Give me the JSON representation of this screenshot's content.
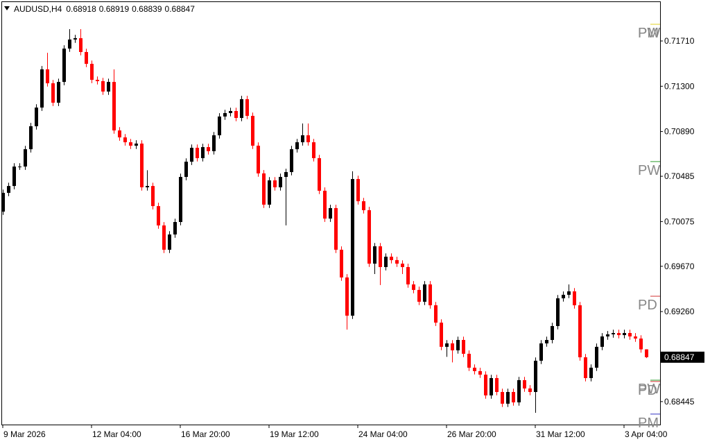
{
  "chart_data": {
    "type": "candlestick",
    "symbol": "AUDUSD,H4",
    "bull_color": "#000000",
    "bear_color": "#ff0000",
    "categories": [
      "9 Mar 2026",
      null,
      null,
      null,
      null,
      null,
      null,
      null,
      null,
      null,
      null,
      null,
      null,
      null,
      null,
      null,
      "12 Mar 04:00",
      null,
      null,
      null,
      null,
      null,
      null,
      null,
      null,
      null,
      null,
      null,
      null,
      null,
      null,
      null,
      "16 Mar 20:00",
      null,
      null,
      null,
      null,
      null,
      null,
      null,
      null,
      null,
      null,
      null,
      null,
      null,
      null,
      null,
      "19 Mar 12:00",
      null,
      null,
      null,
      null,
      null,
      null,
      null,
      null,
      null,
      null,
      null,
      null,
      null,
      null,
      null,
      "24 Mar 04:00",
      null,
      null,
      null,
      null,
      null,
      null,
      null,
      null,
      null,
      null,
      null,
      null,
      null,
      null,
      null,
      "26 Mar 20:00",
      null,
      null,
      null,
      null,
      null,
      null,
      null,
      null,
      null,
      null,
      null,
      null,
      null,
      null,
      null,
      "31 Mar 12:00",
      null,
      null,
      null,
      null,
      null,
      null,
      null,
      null,
      null,
      null,
      null,
      null,
      null,
      null,
      null,
      "3 Apr 04:00",
      null,
      null,
      null,
      null
    ],
    "open": [
      0.70165,
      0.70335,
      0.70397,
      0.70573,
      0.70573,
      0.7073,
      0.70938,
      0.71107,
      0.71453,
      0.71327,
      0.71151,
      0.71339,
      0.71641,
      0.71723,
      0.71735,
      0.7161,
      0.71503,
      0.71358,
      0.71346,
      0.71252,
      0.71339,
      0.709,
      0.70837,
      0.70793,
      0.70762,
      0.70781,
      0.70385,
      0.70397,
      0.70215,
      0.7004,
      0.6982,
      0.69958,
      0.70071,
      0.70479,
      0.70617,
      0.70743,
      0.70649,
      0.70749,
      0.70712,
      0.70856,
      0.71026,
      0.71057,
      0.71076,
      0.71013,
      0.71183,
      0.71032,
      0.70762,
      0.70511,
      0.70228,
      0.70448,
      0.70385,
      0.70479,
      0.70523,
      0.7073,
      0.70793,
      0.70856,
      0.70793,
      0.70649,
      0.70354,
      0.70102,
      0.70197,
      0.6982,
      0.69569,
      0.69223,
      0.7046,
      0.70259,
      0.70178,
      0.69694,
      0.69851,
      0.69663,
      0.69757,
      0.69726,
      0.69694,
      0.69663,
      0.69506,
      0.69456,
      0.69349,
      0.69506,
      0.69317,
      0.6916,
      0.68941,
      0.68972,
      0.68909,
      0.69003,
      0.68878,
      0.68752,
      0.68721,
      0.68689,
      0.68501,
      0.68658,
      0.68532,
      0.68426,
      0.68532,
      0.68438,
      0.68639,
      0.68564,
      0.68532,
      0.68815,
      0.68972,
      0.69003,
      0.69129,
      0.6938,
      0.69412,
      0.69443,
      0.69317,
      0.68846,
      0.68658,
      0.68752,
      0.68941,
      0.69035,
      0.69054,
      0.69066,
      0.69047,
      0.69066,
      0.69035,
      0.69016,
      0.68918
    ],
    "high": [
      0.70365,
      0.70427,
      0.70603,
      0.70603,
      0.7076,
      0.70968,
      0.71137,
      0.71483,
      0.71603,
      0.71357,
      0.71369,
      0.71671,
      0.71817,
      0.71765,
      0.71817,
      0.7164,
      0.71533,
      0.71388,
      0.71376,
      0.71369,
      0.71453,
      0.7093,
      0.70867,
      0.70823,
      0.70811,
      0.70811,
      0.7054,
      0.70427,
      0.70245,
      0.7007,
      0.69988,
      0.70101,
      0.70509,
      0.70647,
      0.70773,
      0.70773,
      0.70779,
      0.70779,
      0.70886,
      0.71056,
      0.71087,
      0.71106,
      0.71106,
      0.71213,
      0.71213,
      0.71062,
      0.70792,
      0.70541,
      0.70478,
      0.70478,
      0.70509,
      0.70553,
      0.7076,
      0.70823,
      0.70963,
      0.70963,
      0.70823,
      0.70679,
      0.70384,
      0.70227,
      0.70227,
      0.6985,
      0.69599,
      0.7053,
      0.7049,
      0.70289,
      0.70208,
      0.69881,
      0.69881,
      0.69787,
      0.69787,
      0.69756,
      0.69724,
      0.69693,
      0.69536,
      0.69486,
      0.69536,
      0.69536,
      0.69347,
      0.6919,
      0.69002,
      0.69002,
      0.69033,
      0.69033,
      0.68908,
      0.68782,
      0.68751,
      0.68719,
      0.68688,
      0.68688,
      0.68562,
      0.68562,
      0.68562,
      0.68669,
      0.68669,
      0.68594,
      0.68845,
      0.69002,
      0.69033,
      0.69159,
      0.6941,
      0.69442,
      0.69506,
      0.69473,
      0.69347,
      0.68876,
      0.68782,
      0.68971,
      0.69065,
      0.69084,
      0.69096,
      0.69096,
      0.69096,
      0.69096,
      0.69065,
      0.69046,
      0.68919
    ],
    "low": [
      0.70135,
      0.70305,
      0.70367,
      0.70543,
      0.70543,
      0.707,
      0.70908,
      0.71077,
      0.71297,
      0.71121,
      0.71121,
      0.71309,
      0.71611,
      0.71693,
      0.7158,
      0.71473,
      0.71328,
      0.71316,
      0.71222,
      0.71222,
      0.7087,
      0.70807,
      0.70763,
      0.70732,
      0.70732,
      0.70355,
      0.70355,
      0.70185,
      0.7001,
      0.6979,
      0.6979,
      0.69928,
      0.70041,
      0.70449,
      0.70587,
      0.70619,
      0.70619,
      0.70682,
      0.70682,
      0.70826,
      0.70996,
      0.71027,
      0.70983,
      0.70983,
      0.71002,
      0.70732,
      0.70481,
      0.70198,
      0.70198,
      0.70355,
      0.70355,
      0.7004,
      0.70493,
      0.707,
      0.70763,
      0.70763,
      0.70619,
      0.70324,
      0.70072,
      0.70072,
      0.6979,
      0.69539,
      0.69097,
      0.69193,
      0.70229,
      0.70148,
      0.69664,
      0.696,
      0.695,
      0.69633,
      0.69696,
      0.69664,
      0.696,
      0.69476,
      0.69426,
      0.69319,
      0.69319,
      0.69287,
      0.6913,
      0.68911,
      0.6885,
      0.688,
      0.68879,
      0.68848,
      0.68722,
      0.68691,
      0.68659,
      0.68471,
      0.68471,
      0.68502,
      0.68396,
      0.68396,
      0.68408,
      0.68408,
      0.68534,
      0.68502,
      0.68344,
      0.68785,
      0.68942,
      0.68973,
      0.69099,
      0.6935,
      0.69382,
      0.69287,
      0.68816,
      0.68628,
      0.68628,
      0.68722,
      0.68911,
      0.69005,
      0.69024,
      0.69017,
      0.69017,
      0.69005,
      0.68986,
      0.68888,
      0.68839
    ],
    "close": [
      0.70335,
      0.70397,
      0.70573,
      0.70573,
      0.7073,
      0.70938,
      0.71107,
      0.71453,
      0.71327,
      0.71151,
      0.71339,
      0.71641,
      0.71723,
      0.71735,
      0.7161,
      0.71503,
      0.71358,
      0.71346,
      0.71252,
      0.71339,
      0.709,
      0.70837,
      0.70793,
      0.70762,
      0.70781,
      0.70385,
      0.70397,
      0.70215,
      0.7004,
      0.6982,
      0.69958,
      0.70071,
      0.70479,
      0.70617,
      0.70743,
      0.70649,
      0.70749,
      0.70712,
      0.70856,
      0.71026,
      0.71057,
      0.71076,
      0.71013,
      0.71183,
      0.71032,
      0.70762,
      0.70511,
      0.70228,
      0.70448,
      0.70385,
      0.70479,
      0.70523,
      0.7073,
      0.70793,
      0.70856,
      0.70793,
      0.70649,
      0.70354,
      0.70102,
      0.70197,
      0.6982,
      0.69569,
      0.69223,
      0.7046,
      0.70259,
      0.70178,
      0.69694,
      0.69851,
      0.69663,
      0.69757,
      0.69726,
      0.69694,
      0.69663,
      0.69506,
      0.69456,
      0.69349,
      0.69506,
      0.69317,
      0.6916,
      0.68941,
      0.68972,
      0.68909,
      0.69003,
      0.68878,
      0.68752,
      0.68721,
      0.68689,
      0.68501,
      0.68658,
      0.68532,
      0.68426,
      0.68532,
      0.68438,
      0.68639,
      0.68564,
      0.68532,
      0.68815,
      0.68972,
      0.69003,
      0.69129,
      0.6938,
      0.69412,
      0.69443,
      0.69317,
      0.68846,
      0.68658,
      0.68752,
      0.68941,
      0.69035,
      0.69054,
      0.69066,
      0.69047,
      0.69066,
      0.69035,
      0.69016,
      0.68918,
      0.68847
    ],
    "ylim": [
      0.68237,
      0.72062
    ],
    "yticks": [
      {
        "value": 0.7171,
        "label": "0.71710"
      },
      {
        "value": 0.713,
        "label": "0.71300"
      },
      {
        "value": 0.7089,
        "label": "0.70890"
      },
      {
        "value": 0.70485,
        "label": "0.70485"
      },
      {
        "value": 0.70075,
        "label": "0.70075"
      },
      {
        "value": 0.6967,
        "label": "0.69670"
      },
      {
        "value": 0.6926,
        "label": "0.69260"
      },
      {
        "value": 0.68445,
        "label": "0.68445"
      }
    ],
    "annotations": [
      {
        "text": "PW",
        "value": 0.71861,
        "color": "#e0d020"
      },
      {
        "text": "PM",
        "value": 0.71861,
        "color": "#e0d020"
      },
      {
        "text": "PW",
        "value": 0.70618,
        "color": "#2a9a2a"
      },
      {
        "text": "PD",
        "value": 0.69399,
        "color": "#d03030"
      },
      {
        "text": "PW",
        "value": 0.68639,
        "color": "#2a9a2a"
      },
      {
        "text": "PD",
        "value": 0.68627,
        "color": "#d03030"
      },
      {
        "text": "PM",
        "value": 0.68332,
        "color": "#3030c0"
      }
    ]
  }
}
